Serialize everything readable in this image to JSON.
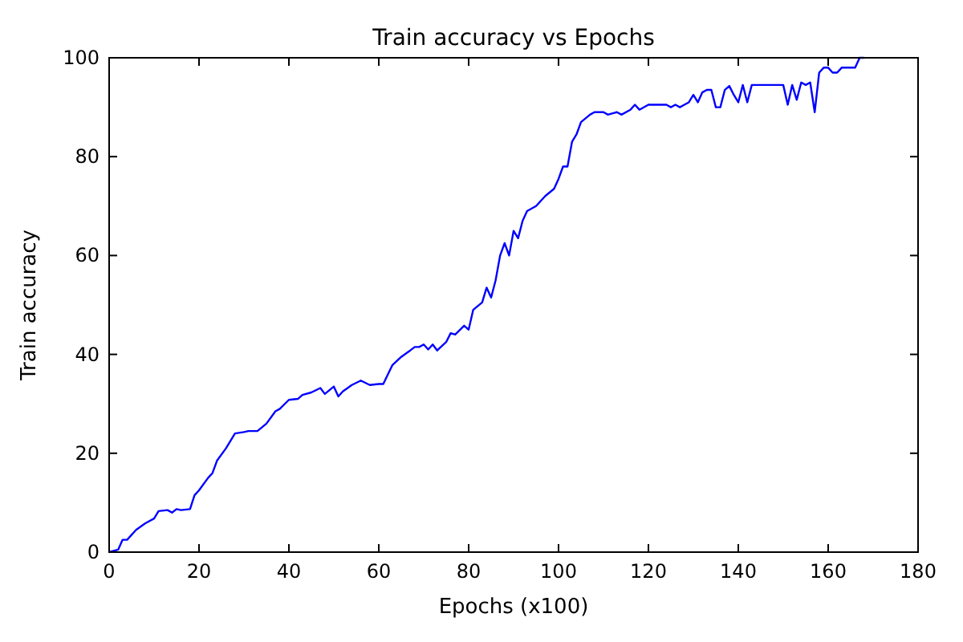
{
  "chart_data": {
    "type": "line",
    "title": "Train accuracy vs Epochs",
    "xlabel": "Epochs (x100)",
    "ylabel": "Train accuracy",
    "x": [
      0,
      2,
      3,
      4,
      6,
      8,
      10,
      11,
      13,
      14,
      15,
      16,
      18,
      19,
      20,
      22,
      23,
      24,
      26,
      28,
      30,
      31,
      33,
      35,
      37,
      38,
      40,
      42,
      43,
      45,
      47,
      48,
      50,
      51,
      52,
      54,
      56,
      58,
      60,
      61,
      63,
      65,
      67,
      68,
      69,
      70,
      71,
      72,
      73,
      75,
      76,
      77,
      79,
      80,
      81,
      83,
      84,
      85,
      86,
      87,
      88,
      89,
      90,
      91,
      92,
      93,
      95,
      97,
      99,
      100,
      101,
      102,
      103,
      104,
      105,
      107,
      108,
      110,
      111,
      113,
      114,
      116,
      117,
      118,
      120,
      124,
      125,
      126,
      127,
      128,
      129,
      130,
      131,
      132,
      133,
      134,
      135,
      136,
      137,
      138,
      139,
      140,
      141,
      142,
      143,
      150,
      151,
      152,
      153,
      154,
      155,
      156,
      157,
      158,
      159,
      160,
      161,
      162,
      163,
      166,
      167,
      168
    ],
    "series": [
      {
        "color": "#0000ff",
        "values": [
          0,
          0.5,
          2.5,
          2.5,
          4.5,
          5.8,
          6.8,
          8.3,
          8.5,
          8,
          8.7,
          8.5,
          8.7,
          11.5,
          12.5,
          15,
          16,
          18.5,
          21,
          24,
          24.3,
          24.5,
          24.5,
          26,
          28.5,
          29,
          30.8,
          31,
          31.8,
          32.3,
          33.2,
          32,
          33.5,
          31.5,
          32.5,
          33.8,
          34.7,
          33.8,
          34,
          34,
          37.8,
          39.5,
          40.8,
          41.5,
          41.5,
          42,
          41,
          42,
          40.8,
          42.5,
          44.3,
          44,
          45.8,
          45,
          49,
          50.5,
          53.5,
          51.5,
          55,
          60,
          62.5,
          60,
          65,
          63.5,
          67,
          69,
          70,
          72,
          73.5,
          75.5,
          78,
          78,
          83,
          84.5,
          87,
          88.5,
          89,
          89,
          88.5,
          89,
          88.5,
          89.5,
          90.5,
          89.5,
          90.5,
          90.5,
          90,
          90.5,
          90,
          90.5,
          91,
          92.5,
          91,
          93,
          93.5,
          93.5,
          90,
          90,
          93.5,
          94.3,
          92.5,
          91,
          94.5,
          91,
          94.5,
          94.5,
          90.5,
          94.5,
          91.5,
          95,
          94.5,
          95,
          89,
          97,
          98,
          98,
          97,
          97,
          98,
          98,
          100,
          100
        ]
      }
    ],
    "xlim": [
      0,
      180
    ],
    "xticks": [
      0,
      20,
      40,
      60,
      80,
      100,
      120,
      140,
      160,
      180
    ],
    "ylim": [
      0,
      100
    ],
    "yticks": [
      0,
      20,
      40,
      60,
      80,
      100
    ],
    "grid": false,
    "marker": "none",
    "line_style": "solid"
  }
}
